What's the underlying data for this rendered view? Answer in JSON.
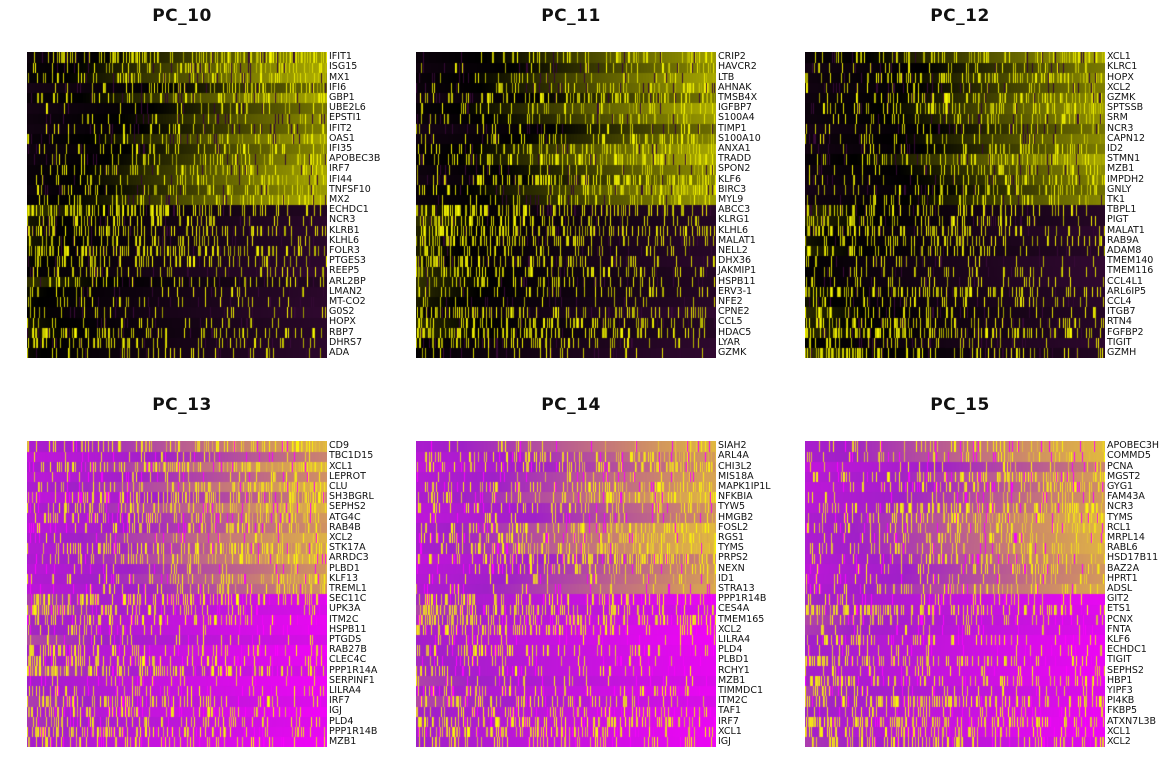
{
  "chart_data": [
    {
      "type": "heatmap",
      "title": "PC_10",
      "palette": "black-purple-yellow",
      "colors": {
        "low": "#3a0a3a",
        "mid": "#000000",
        "high": "#ffff00"
      },
      "genes": [
        "IFIT1",
        "ISG15",
        "MX1",
        "IFI6",
        "GBP1",
        "UBE2L6",
        "EPSTI1",
        "IFIT2",
        "OAS1",
        "IFI35",
        "APOBEC3B",
        "IRF7",
        "IFI44",
        "TNFSF10",
        "MX2",
        "ECHDC1",
        "NCR3",
        "KLRB1",
        "KLHL6",
        "FOLR3",
        "PTGES3",
        "REEP5",
        "ARL2BP",
        "LMAN2",
        "MT-CO2",
        "G0S2",
        "HOPX",
        "RBP7",
        "DHRS7",
        "ADA"
      ]
    },
    {
      "type": "heatmap",
      "title": "PC_11",
      "palette": "black-purple-yellow",
      "colors": {
        "low": "#3a0a3a",
        "mid": "#000000",
        "high": "#ffff00"
      },
      "genes": [
        "CRIP2",
        "HAVCR2",
        "LTB",
        "AHNAK",
        "TMSB4X",
        "IGFBP7",
        "S100A4",
        "TIMP1",
        "S100A10",
        "ANXA1",
        "TRADD",
        "SPON2",
        "KLF6",
        "BIRC3",
        "MYL9",
        "ABCC3",
        "KLRG1",
        "KLHL6",
        "MALAT1",
        "NELL2",
        "DHX36",
        "JAKMIP1",
        "HSPB11",
        "ERV3-1",
        "NFE2",
        "CPNE2",
        "CCL5",
        "HDAC5",
        "LYAR",
        "GZMK"
      ]
    },
    {
      "type": "heatmap",
      "title": "PC_12",
      "palette": "black-purple-yellow",
      "colors": {
        "low": "#3a0a3a",
        "mid": "#000000",
        "high": "#ffff00"
      },
      "genes": [
        "XCL1",
        "KLRC1",
        "HOPX",
        "XCL2",
        "GZMK",
        "SPTSSB",
        "SRM",
        "NCR3",
        "CAPN12",
        "ID2",
        "STMN1",
        "MZB1",
        "IMPDH2",
        "GNLY",
        "TK1",
        "TBPL1",
        "PIGT",
        "MALAT1",
        "RAB9A",
        "ADAM8",
        "TMEM140",
        "TMEM116",
        "CCL4L1",
        "ARL6IP5",
        "CCL4",
        "ITGB7",
        "RTN4",
        "FGFBP2",
        "TIGIT",
        "GZMH"
      ]
    },
    {
      "type": "heatmap",
      "title": "PC_13",
      "palette": "magenta-purple-yellow",
      "colors": {
        "low": "#ff00ff",
        "mid": "#a020c8",
        "high": "#ffff00"
      },
      "genes": [
        "CD9",
        "TBC1D15",
        "XCL1",
        "LEPROT",
        "CLU",
        "SH3BGRL",
        "SEPHS2",
        "ATG4C",
        "RAB4B",
        "XCL2",
        "STK17A",
        "ARRDC3",
        "PLBD1",
        "KLF13",
        "TREML1",
        "SEC11C",
        "UPK3A",
        "ITM2C",
        "HSPB11",
        "PTGDS",
        "RAB27B",
        "CLEC4C",
        "PPP1R14A",
        "SERPINF1",
        "LILRA4",
        "IRF7",
        "IGJ",
        "PLD4",
        "PPP1R14B",
        "MZB1"
      ]
    },
    {
      "type": "heatmap",
      "title": "PC_14",
      "palette": "magenta-purple-yellow",
      "colors": {
        "low": "#ff00ff",
        "mid": "#a020c8",
        "high": "#ffff00"
      },
      "genes": [
        "SIAH2",
        "ARL4A",
        "CHI3L2",
        "MIS18A",
        "MAPK1IP1L",
        "NFKBIA",
        "TYW5",
        "HMGB2",
        "FOSL2",
        "RGS1",
        "TYMS",
        "PRPS2",
        "NEXN",
        "ID1",
        "STRA13",
        "PPP1R14B",
        "CES4A",
        "TMEM165",
        "XCL2",
        "LILRA4",
        "PLD4",
        "PLBD1",
        "RCHY1",
        "MZB1",
        "TIMMDC1",
        "ITM2C",
        "TAF1",
        "IRF7",
        "XCL1",
        "IGJ"
      ]
    },
    {
      "type": "heatmap",
      "title": "PC_15",
      "palette": "magenta-purple-yellow",
      "colors": {
        "low": "#ff00ff",
        "mid": "#a020c8",
        "high": "#ffff00"
      },
      "genes": [
        "APOBEC3H",
        "COMMD5",
        "PCNA",
        "MGST2",
        "GYG1",
        "FAM43A",
        "NCR3",
        "TYMS",
        "RCL1",
        "MRPL14",
        "RABL6",
        "HSD17B11",
        "BAZ2A",
        "HPRT1",
        "ADSL",
        "GIT2",
        "ETS1",
        "PCNX",
        "FNTA",
        "KLF6",
        "ECHDC1",
        "TIGIT",
        "SEPHS2",
        "HBP1",
        "YIPF3",
        "PI4KB",
        "FKBP5",
        "ATXN7L3B",
        "XCL1",
        "XCL2"
      ]
    }
  ]
}
